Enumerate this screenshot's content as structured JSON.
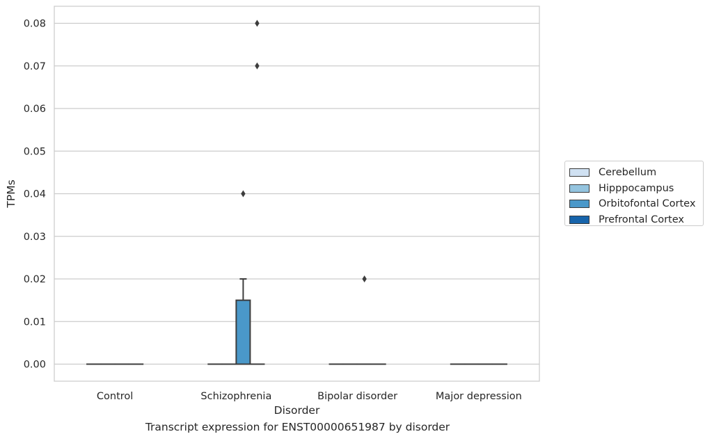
{
  "chart_data": {
    "type": "box",
    "title": "Transcript expression for ENST00000651987 by disorder",
    "xlabel": "Disorder",
    "ylabel": "TPMs",
    "categories": [
      "Control",
      "Schizophrenia",
      "Bipolar disorder",
      "Major depression"
    ],
    "ylim": [
      -0.004,
      0.084
    ],
    "yticks": [
      0.0,
      0.01,
      0.02,
      0.03,
      0.04,
      0.05,
      0.06,
      0.07,
      0.08
    ],
    "ytick_labels": [
      "0.00",
      "0.01",
      "0.02",
      "0.03",
      "0.04",
      "0.05",
      "0.06",
      "0.07",
      "0.08"
    ],
    "grid": true,
    "legend_position": "right",
    "series": [
      {
        "name": "Cerebellum",
        "color": "#d0e1f2",
        "boxes": [
          {
            "q1": 0,
            "median": 0,
            "q3": 0,
            "whislo": 0,
            "whishi": 0,
            "fliers": []
          },
          {
            "q1": 0,
            "median": 0,
            "q3": 0,
            "whislo": 0,
            "whishi": 0,
            "fliers": []
          },
          {
            "q1": 0,
            "median": 0,
            "q3": 0,
            "whislo": 0,
            "whishi": 0,
            "fliers": []
          },
          {
            "q1": 0,
            "median": 0,
            "q3": 0,
            "whislo": 0,
            "whishi": 0,
            "fliers": []
          }
        ]
      },
      {
        "name": "Hipppocampus",
        "color": "#94c4df",
        "boxes": [
          {
            "q1": 0,
            "median": 0,
            "q3": 0,
            "whislo": 0,
            "whishi": 0,
            "fliers": []
          },
          {
            "q1": 0,
            "median": 0,
            "q3": 0,
            "whislo": 0,
            "whishi": 0,
            "fliers": []
          },
          {
            "q1": 0,
            "median": 0,
            "q3": 0,
            "whislo": 0,
            "whishi": 0,
            "fliers": []
          },
          {
            "q1": 0,
            "median": 0,
            "q3": 0,
            "whislo": 0,
            "whishi": 0,
            "fliers": []
          }
        ]
      },
      {
        "name": "Orbitofontal Cortex",
        "color": "#4a98c9",
        "boxes": [
          {
            "q1": 0,
            "median": 0,
            "q3": 0,
            "whislo": 0,
            "whishi": 0,
            "fliers": []
          },
          {
            "q1": 0,
            "median": 0,
            "q3": 0.015,
            "whislo": 0,
            "whishi": 0.02,
            "fliers": [
              0.04
            ]
          },
          {
            "q1": 0,
            "median": 0,
            "q3": 0,
            "whislo": 0,
            "whishi": 0,
            "fliers": [
              0.02
            ]
          },
          {
            "q1": 0,
            "median": 0,
            "q3": 0,
            "whislo": 0,
            "whishi": 0,
            "fliers": []
          }
        ]
      },
      {
        "name": "Prefrontal Cortex",
        "color": "#1764ab",
        "boxes": [
          {
            "q1": 0,
            "median": 0,
            "q3": 0,
            "whislo": 0,
            "whishi": 0,
            "fliers": []
          },
          {
            "q1": 0,
            "median": 0,
            "q3": 0,
            "whislo": 0,
            "whishi": 0,
            "fliers": [
              0.07,
              0.08
            ]
          },
          {
            "q1": 0,
            "median": 0,
            "q3": 0,
            "whislo": 0,
            "whishi": 0,
            "fliers": []
          },
          {
            "q1": 0,
            "median": 0,
            "q3": 0,
            "whislo": 0,
            "whishi": 0,
            "fliers": []
          }
        ]
      }
    ]
  }
}
